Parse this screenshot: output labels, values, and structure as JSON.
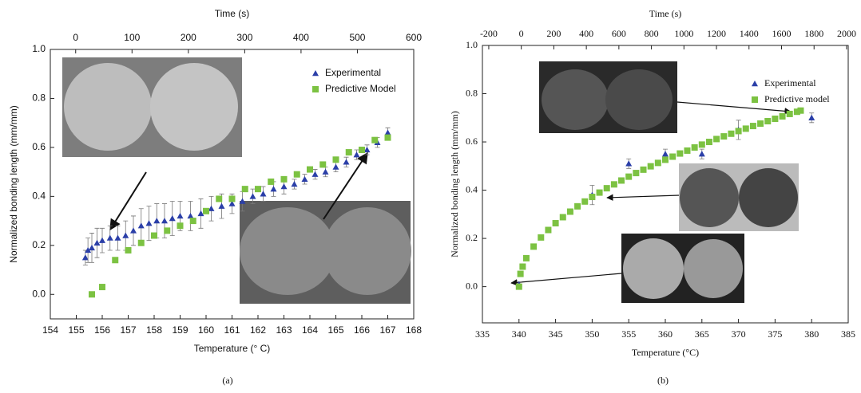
{
  "chart_data": [
    {
      "type": "scatter",
      "xlabel": "Temperature (° C)",
      "ylabel": "Normalized bonding length (mm/mm)",
      "x2label": "Time (s)",
      "caption": "(a)",
      "xlim": [
        154,
        168
      ],
      "xticks": [
        154,
        155,
        156,
        157,
        158,
        159,
        160,
        161,
        162,
        163,
        164,
        165,
        166,
        167,
        168
      ],
      "x2lim": [
        -45,
        600
      ],
      "x2ticks": [
        0,
        100,
        200,
        300,
        400,
        500,
        600
      ],
      "ylim": [
        -0.1,
        1.0
      ],
      "yticks": [
        {
          "value": 0,
          "label": "0.0"
        },
        0.2,
        0.4,
        0.6,
        0.8,
        {
          "value": 1,
          "label": "1.0"
        }
      ],
      "legend": "upper right",
      "series": [
        {
          "name": "Experimental",
          "color": "#2b3fa8",
          "marker": "triangle",
          "x": [
            155.35,
            155.45,
            155.6,
            155.8,
            156.0,
            156.3,
            156.6,
            156.9,
            157.2,
            157.5,
            157.8,
            158.1,
            158.4,
            158.7,
            159.0,
            159.4,
            159.8,
            160.2,
            160.6,
            161.0,
            161.4,
            161.8,
            162.2,
            162.6,
            163.0,
            163.4,
            163.8,
            164.2,
            164.6,
            165.0,
            165.4,
            165.8,
            166.2,
            166.6,
            167.0
          ],
          "values": [
            0.15,
            0.18,
            0.19,
            0.21,
            0.22,
            0.23,
            0.23,
            0.24,
            0.26,
            0.28,
            0.29,
            0.3,
            0.3,
            0.31,
            0.32,
            0.32,
            0.33,
            0.35,
            0.36,
            0.37,
            0.38,
            0.4,
            0.41,
            0.43,
            0.44,
            0.45,
            0.47,
            0.49,
            0.5,
            0.52,
            0.54,
            0.57,
            0.59,
            0.62,
            0.66
          ],
          "errors": [
            0.03,
            0.05,
            0.06,
            0.06,
            0.05,
            0.05,
            0.05,
            0.06,
            0.06,
            0.07,
            0.07,
            0.07,
            0.07,
            0.07,
            0.06,
            0.06,
            0.06,
            0.05,
            0.05,
            0.04,
            0.04,
            0.03,
            0.03,
            0.03,
            0.03,
            0.02,
            0.02,
            0.02,
            0.02,
            0.02,
            0.02,
            0.02,
            0.02,
            0.02,
            0.02
          ]
        },
        {
          "name": "Predictive Model",
          "color": "#7cc242",
          "marker": "square",
          "x": [
            155.6,
            156.0,
            156.5,
            157.0,
            157.5,
            158.0,
            158.5,
            159.0,
            159.5,
            160.0,
            160.5,
            161.0,
            161.5,
            162.0,
            162.5,
            163.0,
            163.5,
            164.0,
            164.5,
            165.0,
            165.5,
            166.0,
            166.5,
            167.0
          ],
          "values": [
            0.0,
            0.03,
            0.14,
            0.18,
            0.21,
            0.24,
            0.26,
            0.28,
            0.3,
            0.34,
            0.39,
            0.39,
            0.43,
            0.43,
            0.46,
            0.47,
            0.49,
            0.51,
            0.53,
            0.55,
            0.58,
            0.59,
            0.63,
            0.64
          ]
        }
      ]
    },
    {
      "type": "scatter",
      "xlabel": "Temperature (°C)",
      "ylabel": "Normalized bonding length (mm/mm)",
      "x2label": "Time (s)",
      "caption": "(b)",
      "xlim": [
        335,
        385
      ],
      "xticks": [
        335,
        340,
        345,
        350,
        355,
        360,
        365,
        370,
        375,
        380,
        385
      ],
      "x2lim": [
        -239,
        2010
      ],
      "x2ticks": [
        -200,
        0,
        200,
        400,
        600,
        800,
        1000,
        1200,
        1400,
        1600,
        1800,
        2000
      ],
      "ylim": [
        -0.15,
        1.0
      ],
      "yticks": [
        {
          "value": 0,
          "label": "0.0"
        },
        0.2,
        0.4,
        0.6,
        0.8,
        {
          "value": 1,
          "label": "1.0"
        }
      ],
      "legend": "upper right",
      "series": [
        {
          "name": "Experimental",
          "color": "#2b3fa8",
          "marker": "triangle",
          "x": [
            340,
            350,
            355,
            360,
            365,
            370,
            380
          ],
          "values": [
            0.01,
            0.38,
            0.51,
            0.55,
            0.55,
            0.65,
            0.7
          ],
          "errors": [
            0.01,
            0.04,
            0.02,
            0.02,
            0.02,
            0.04,
            0.02
          ]
        },
        {
          "name": "Predictive model",
          "color": "#7cc242",
          "marker": "square",
          "x": [
            340,
            340.2,
            340.5,
            341,
            342,
            343,
            344,
            345,
            346,
            347,
            348,
            349,
            350,
            351,
            352,
            353,
            354,
            355,
            356,
            357,
            358,
            359,
            360,
            361,
            362,
            363,
            364,
            365,
            366,
            367,
            368,
            369,
            370,
            371,
            372,
            373,
            374,
            375,
            376,
            377,
            378,
            378.5
          ],
          "values": [
            0.0,
            0.053,
            0.083,
            0.118,
            0.166,
            0.204,
            0.235,
            0.263,
            0.288,
            0.311,
            0.333,
            0.353,
            0.372,
            0.39,
            0.408,
            0.424,
            0.44,
            0.456,
            0.471,
            0.485,
            0.499,
            0.513,
            0.526,
            0.539,
            0.552,
            0.564,
            0.577,
            0.589,
            0.6,
            0.612,
            0.623,
            0.634,
            0.645,
            0.655,
            0.666,
            0.676,
            0.686,
            0.696,
            0.706,
            0.716,
            0.725,
            0.73
          ]
        }
      ]
    }
  ]
}
